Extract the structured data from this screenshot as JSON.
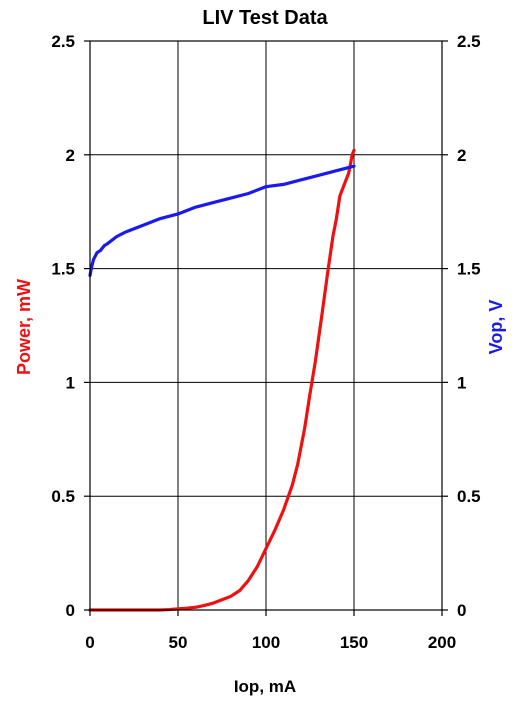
{
  "chart_data": {
    "type": "line",
    "title": "LIV Test Data",
    "xlabel": "Iop, mA",
    "ylabel_left": "Power, mW",
    "ylabel_right": "Vop, V",
    "xlim": [
      0,
      200
    ],
    "ylim_left": [
      0,
      2.5
    ],
    "ylim_right": [
      0,
      2.5
    ],
    "xticks": [
      "0",
      "50",
      "100",
      "150",
      "200"
    ],
    "yticks_left": [
      "0",
      "0.5",
      "1",
      "1.5",
      "2",
      "2.5"
    ],
    "yticks_right": [
      "0",
      "0.5",
      "1",
      "1.5",
      "2",
      "2.5"
    ],
    "grid": true,
    "colors": {
      "power": "#ee1111",
      "voltage": "#1a1aee",
      "ylabel_left": "#ee1111",
      "ylabel_right": "#1a1aee"
    },
    "series": [
      {
        "axis": "left",
        "x": [
          0,
          10,
          20,
          30,
          40,
          45,
          50,
          55,
          60,
          65,
          70,
          75,
          80,
          85,
          90,
          95,
          100,
          105,
          110,
          115,
          118,
          120,
          122,
          125,
          128,
          130,
          132,
          135,
          138,
          140,
          142,
          145,
          147,
          148,
          149,
          150
        ],
        "values": [
          0,
          0,
          0,
          0,
          0,
          0.002,
          0.005,
          0.008,
          0.012,
          0.02,
          0.03,
          0.045,
          0.06,
          0.085,
          0.13,
          0.19,
          0.27,
          0.35,
          0.44,
          0.55,
          0.64,
          0.72,
          0.8,
          0.95,
          1.09,
          1.2,
          1.31,
          1.48,
          1.64,
          1.72,
          1.82,
          1.88,
          1.92,
          1.96,
          2.0,
          2.02
        ]
      },
      {
        "axis": "right",
        "x": [
          0,
          1,
          2,
          4,
          6,
          8,
          10,
          15,
          20,
          30,
          40,
          50,
          60,
          70,
          80,
          90,
          100,
          110,
          120,
          130,
          140,
          145,
          150
        ],
        "values": [
          1.47,
          1.51,
          1.54,
          1.57,
          1.58,
          1.6,
          1.61,
          1.64,
          1.66,
          1.69,
          1.72,
          1.74,
          1.77,
          1.79,
          1.81,
          1.83,
          1.86,
          1.87,
          1.89,
          1.91,
          1.93,
          1.94,
          1.95
        ]
      }
    ]
  }
}
